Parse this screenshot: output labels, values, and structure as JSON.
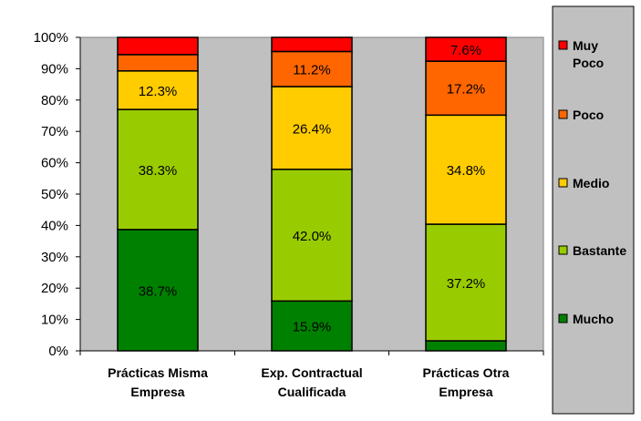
{
  "chart_data": {
    "type": "bar",
    "stacked": true,
    "normalized": true,
    "categories": [
      [
        "Prácticas Misma",
        "Empresa"
      ],
      [
        "Exp. Contractual",
        "Cualificada"
      ],
      [
        "Prácticas Otra",
        "Empresa"
      ]
    ],
    "series": [
      {
        "name": "Mucho",
        "color": "#008000",
        "values": [
          38.7,
          15.9,
          3.2
        ]
      },
      {
        "name": "Bastante",
        "color": "#99CC00",
        "values": [
          38.3,
          42.0,
          37.2
        ]
      },
      {
        "name": "Medio",
        "color": "#FFCC00",
        "values": [
          12.3,
          26.4,
          34.8
        ]
      },
      {
        "name": "Poco",
        "color": "#FF6600",
        "values": [
          5.2,
          11.2,
          17.2
        ]
      },
      {
        "name": [
          "Muy",
          "Poco"
        ],
        "color": "#FF0000",
        "values": [
          5.5,
          4.5,
          7.6
        ]
      }
    ],
    "data_labels": [
      [
        "38.7%",
        "38.3%",
        "12.3%",
        "",
        ""
      ],
      [
        "15.9%",
        "42.0%",
        "26.4%",
        "11.2%",
        ""
      ],
      [
        "",
        "37.2%",
        "34.8%",
        "17.2%",
        "7.6%"
      ]
    ],
    "ylim": [
      0,
      100
    ],
    "yticks": [
      "0%",
      "10%",
      "20%",
      "30%",
      "40%",
      "50%",
      "60%",
      "70%",
      "80%",
      "90%",
      "100%"
    ],
    "grid": false,
    "plot_background": "#C0C0C0",
    "legend_background": "#C0C0C0",
    "legend_position": "right"
  }
}
